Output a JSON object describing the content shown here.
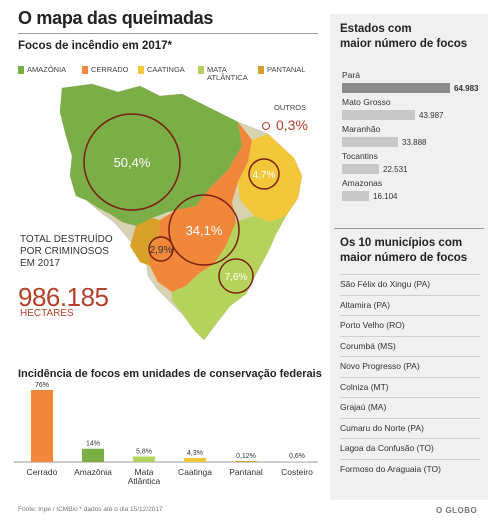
{
  "title": "O mapa das queimadas",
  "map_section": {
    "subtitle": "Focos de incêndio em 2017*",
    "legend": [
      {
        "label": "AMAZÔNIA",
        "color": "#7cae48"
      },
      {
        "label": "CERRADO",
        "color": "#f0873a"
      },
      {
        "label": "CAATINGA",
        "color": "#f2c73a"
      },
      {
        "label": "MATA ATLÂNTICA",
        "color": "#b5d35a"
      },
      {
        "label": "PANTANAL",
        "color": "#d8a22a"
      }
    ],
    "outros_label": "OUTROS",
    "outros_value": "0,3%",
    "circles": [
      {
        "label": "50,4%",
        "biome": "Amazônia"
      },
      {
        "label": "34,1%",
        "biome": "Cerrado"
      },
      {
        "label": "4,7%",
        "biome": "Caatinga"
      },
      {
        "label": "2,9%",
        "biome": "Pantanal"
      },
      {
        "label": "7,6%",
        "biome": "Mata Atlântica"
      }
    ],
    "total_label_1": "TOTAL DESTRUÍDO",
    "total_label_2": "POR CRIMINOSOS",
    "total_label_3": "EM 2017",
    "total_value": "986.185",
    "total_unit": "HECTARES"
  },
  "chart_data": [
    {
      "type": "bar",
      "title": "Incidência de focos em unidades de conservação federais",
      "categories": [
        "Cerrado",
        "Amazônia",
        "Mata Atlântica",
        "Caatinga",
        "Pantanal",
        "Costeiro"
      ],
      "value_labels": [
        "76%",
        "14%",
        "5,8%",
        "4,3%",
        "0,12%",
        "0,6%"
      ],
      "values": [
        76,
        14,
        5.8,
        4.3,
        0.12,
        0.6
      ],
      "colors": [
        "#f0873a",
        "#7cae48",
        "#b5d35a",
        "#f2c73a",
        "#d8a22a",
        "#d8d8d8"
      ],
      "ylim": [
        0,
        76
      ]
    },
    {
      "type": "bar",
      "title": "Estados com maior número de focos",
      "categories": [
        "Pará",
        "Mato Grosso",
        "Maranhão",
        "Tocantins",
        "Amazonas"
      ],
      "value_labels": [
        "64.983",
        "43.987",
        "33.888",
        "22.531",
        "16.104"
      ],
      "values": [
        64983,
        43987,
        33888,
        22531,
        16104
      ],
      "ylim": [
        0,
        64983
      ]
    }
  ],
  "municipalities": {
    "title": "Os 10 municípios com maior número de focos",
    "items": [
      "São Félix do Xingu (PA)",
      "Altamira (PA)",
      "Porto Velho (RO)",
      "Corumbá (MS)",
      "Novo Progresso (PA)",
      "Colniza (MT)",
      "Grajaú (MA)",
      "Cumaru do Norte (PA)",
      "Lagoa da Confusão (TO)",
      "Formoso do Araguaia (TO)"
    ]
  },
  "footer": {
    "source": "Fonte: Inpe / ICMBio * dados até o dia 15/12/2017",
    "logo": "O GLOBO"
  }
}
